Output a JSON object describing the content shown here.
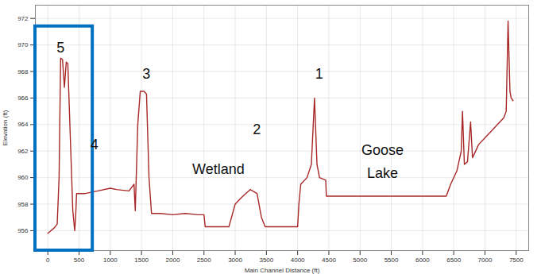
{
  "chart_data": {
    "type": "line",
    "xlabel": "Main Channel Distance (ft)",
    "ylabel": "Elevation (ft)",
    "x": [
      0,
      50,
      100,
      150,
      180,
      205,
      235,
      265,
      295,
      320,
      360,
      400,
      430,
      445,
      460,
      600,
      800,
      1000,
      1100,
      1300,
      1380,
      1400,
      1440,
      1480,
      1540,
      1580,
      1620,
      1660,
      1800,
      2000,
      2200,
      2400,
      2500,
      2520,
      2700,
      2900,
      3000,
      3100,
      3240,
      3350,
      3420,
      3480,
      3600,
      3800,
      4000,
      4020,
      4050,
      4150,
      4220,
      4270,
      4310,
      4350,
      4450,
      4460,
      5000,
      5500,
      6000,
      6380,
      6450,
      6550,
      6620,
      6640,
      6670,
      6720,
      6770,
      6800,
      6900,
      7000,
      7100,
      7200,
      7300,
      7340,
      7370,
      7400,
      7420,
      7450
    ],
    "values": [
      955.8,
      956.0,
      956.2,
      956.5,
      960.0,
      969.0,
      968.9,
      966.8,
      968.7,
      968.6,
      963.0,
      957.5,
      956.0,
      957.0,
      958.8,
      958.8,
      959.0,
      959.2,
      959.1,
      959.0,
      959.5,
      957.5,
      964.0,
      966.5,
      966.5,
      966.3,
      960.0,
      957.3,
      957.3,
      957.2,
      957.3,
      957.2,
      957.2,
      956.3,
      956.3,
      956.3,
      958.0,
      958.5,
      959.1,
      958.8,
      957.0,
      956.3,
      956.3,
      956.3,
      956.3,
      958.0,
      959.5,
      960.0,
      961.0,
      966.0,
      961.0,
      960.0,
      959.8,
      958.6,
      958.6,
      958.6,
      958.6,
      958.6,
      959.5,
      960.5,
      962.0,
      965.0,
      961.0,
      961.2,
      964.2,
      961.5,
      962.5,
      963.0,
      963.5,
      964.0,
      964.5,
      965.0,
      971.8,
      966.5,
      966.0,
      965.8
    ],
    "color": "#a82828",
    "xlim": [
      -200,
      7700
    ],
    "ylim": [
      954.5,
      973
    ],
    "xticks": [
      0,
      500,
      1000,
      1500,
      2000,
      2500,
      3000,
      3500,
      4000,
      4500,
      5000,
      5500,
      6000,
      6500,
      7000,
      7500
    ],
    "yticks": [
      956,
      958,
      960,
      962,
      964,
      966,
      968,
      970,
      972
    ],
    "grid": true,
    "annotations": [
      {
        "text": "5",
        "x": 205,
        "y": 970.0
      },
      {
        "text": "4",
        "x": 744,
        "y": 962.7
      },
      {
        "text": "3",
        "x": 1577,
        "y": 968.0
      },
      {
        "text": "2",
        "x": 3346,
        "y": 963.8
      },
      {
        "text": "1",
        "x": 4346,
        "y": 968.0
      },
      {
        "text": "Wetland",
        "x": 2731,
        "y": 960.8
      },
      {
        "text": "Goose\nLake",
        "x": 5359,
        "y": 961.4
      }
    ],
    "highlight": {
      "x1": -200,
      "x2": 718,
      "y1": 954.5,
      "y2": 971.4,
      "color": "#0070c0"
    }
  }
}
